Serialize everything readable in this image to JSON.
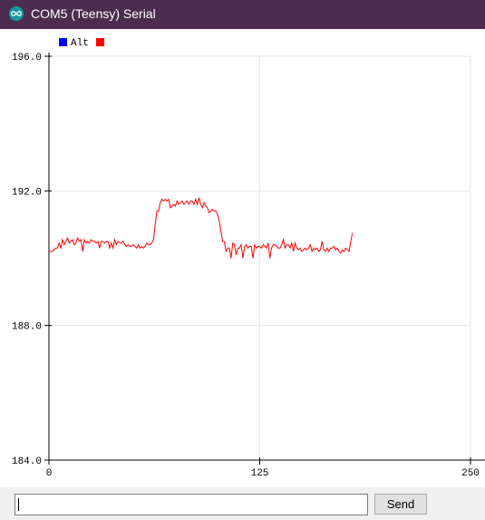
{
  "window": {
    "title": "COM5 (Teensy) Serial",
    "icon": "infinity-icon",
    "title_bar_color": "#4c2d4f",
    "icon_color": "#16999e"
  },
  "legend": {
    "items": [
      {
        "label": "Alt",
        "color": "#0000ff"
      }
    ],
    "trailing_swatch_color": "#ff0000"
  },
  "chart_data": {
    "type": "line",
    "title": "",
    "xlabel": "",
    "ylabel": "",
    "xlim": [
      0,
      250
    ],
    "ylim": [
      184.0,
      196.0
    ],
    "x_ticks": [
      "0",
      "125",
      "250"
    ],
    "y_ticks": [
      "196.0",
      "192.0",
      "188.0",
      "184.0"
    ],
    "x_tick_values": [
      0,
      125,
      250
    ],
    "y_tick_values": [
      196.0,
      192.0,
      188.0,
      184.0
    ],
    "grid": true,
    "legend_position": "top-left",
    "series": [
      {
        "color": "#ff0000",
        "values": [
          190.2,
          190.2,
          190.2,
          190.25,
          190.3,
          190.3,
          190.45,
          190.3,
          190.55,
          190.4,
          190.5,
          190.6,
          190.45,
          190.5,
          190.55,
          190.4,
          190.45,
          190.6,
          190.5,
          190.55,
          190.2,
          190.55,
          190.45,
          190.5,
          190.45,
          190.55,
          190.5,
          190.5,
          190.45,
          190.5,
          190.3,
          190.5,
          190.5,
          190.45,
          190.5,
          190.5,
          190.3,
          190.45,
          190.3,
          190.55,
          190.4,
          190.5,
          190.45,
          190.45,
          190.5,
          190.4,
          190.35,
          190.4,
          190.35,
          190.35,
          190.4,
          190.35,
          190.3,
          190.4,
          190.3,
          190.35,
          190.3,
          190.35,
          190.45,
          190.4,
          190.4,
          190.45,
          190.55,
          191.0,
          191.4,
          191.4,
          191.65,
          191.75,
          191.7,
          191.75,
          191.7,
          191.75,
          191.5,
          191.55,
          191.6,
          191.55,
          191.7,
          191.6,
          191.65,
          191.7,
          191.6,
          191.65,
          191.7,
          191.6,
          191.7,
          191.7,
          191.6,
          191.75,
          191.6,
          191.8,
          191.6,
          191.5,
          191.65,
          191.55,
          191.5,
          191.35,
          191.4,
          191.45,
          191.4,
          191.4,
          191.3,
          191.1,
          190.8,
          190.5,
          190.5,
          190.2,
          190.3,
          190.3,
          190.0,
          190.45,
          190.4,
          190.1,
          190.3,
          190.3,
          190.4,
          190.0,
          190.35,
          190.4,
          190.3,
          190.35,
          190.35,
          190.0,
          190.4,
          190.3,
          190.35,
          190.35,
          190.3,
          190.4,
          190.35,
          190.3,
          190.45,
          190.0,
          190.3,
          190.4,
          190.4,
          190.35,
          190.3,
          190.3,
          190.4,
          190.55,
          190.3,
          190.4,
          190.4,
          190.3,
          190.45,
          190.2,
          190.45,
          190.3,
          190.25,
          190.3,
          190.2,
          190.25,
          190.3,
          190.25,
          190.3,
          190.4,
          190.2,
          190.3,
          190.25,
          190.3,
          190.2,
          190.25,
          190.5,
          190.25,
          190.2,
          190.3,
          190.2,
          190.3,
          190.3,
          190.35,
          190.25,
          190.3,
          190.2,
          190.15,
          190.25,
          190.2,
          190.3,
          190.25,
          190.2,
          190.5,
          190.75
        ]
      }
    ]
  },
  "input_bar": {
    "input_value": "",
    "send_label": "Send"
  }
}
